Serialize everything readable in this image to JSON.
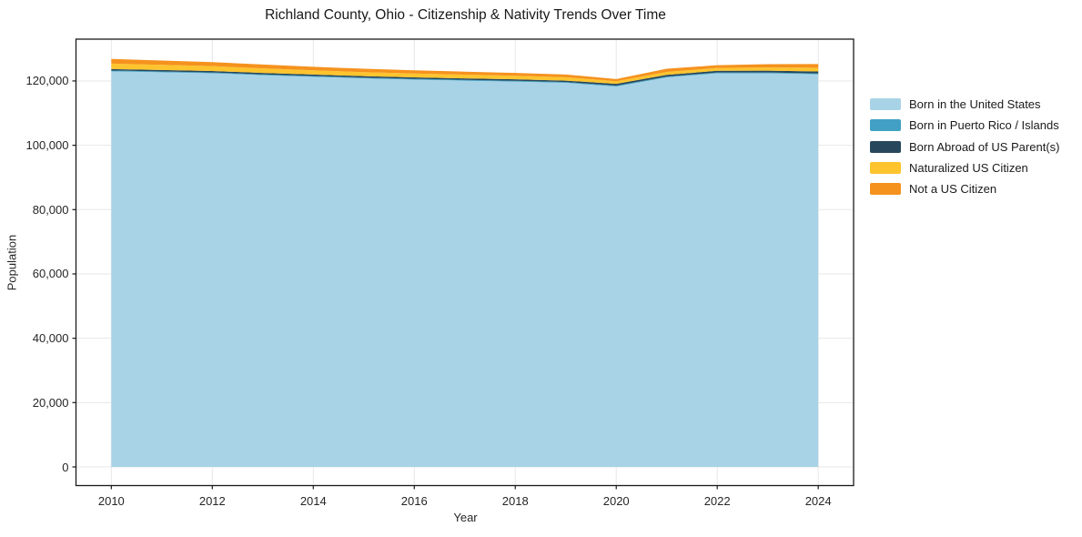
{
  "chart": {
    "title": "Richland County, Ohio - Citizenship & Nativity Trends Over Time",
    "xlabel": "Year",
    "ylabel": "Population"
  },
  "chart_data": {
    "type": "area",
    "stacked": true,
    "title": "Richland County, Ohio - Citizenship & Nativity Trends Over Time",
    "xlabel": "Year",
    "ylabel": "Population",
    "grid": true,
    "legend_position": "right-outside",
    "x": [
      2010,
      2011,
      2012,
      2013,
      2014,
      2015,
      2016,
      2017,
      2018,
      2019,
      2020,
      2021,
      2022,
      2023,
      2024
    ],
    "series": [
      {
        "name": "Born in the United States",
        "color": "#A8D3E7",
        "values": [
          123000,
          122700,
          122400,
          121800,
          121300,
          120800,
          120400,
          120100,
          119800,
          119400,
          118300,
          121100,
          122400,
          122400,
          122100
        ]
      },
      {
        "name": "Born in Puerto Rico / Islands",
        "color": "#41A0C4",
        "values": [
          250,
          250,
          250,
          250,
          250,
          250,
          250,
          250,
          250,
          250,
          250,
          250,
          250,
          250,
          250
        ]
      },
      {
        "name": "Born Abroad of US Parent(s)",
        "color": "#27485C",
        "values": [
          450,
          450,
          450,
          450,
          450,
          450,
          450,
          450,
          450,
          450,
          550,
          550,
          500,
          550,
          600
        ]
      },
      {
        "name": "Naturalized US Citizen",
        "color": "#FDC42E",
        "values": [
          1700,
          1600,
          1500,
          1400,
          1300,
          1250,
          1200,
          1150,
          1100,
          1050,
          800,
          900,
          900,
          1000,
          1150
        ]
      },
      {
        "name": "Not a US Citizen",
        "color": "#F5921E",
        "values": [
          1450,
          1350,
          1250,
          1200,
          1100,
          1050,
          1000,
          950,
          900,
          850,
          700,
          1000,
          850,
          1000,
          1150
        ]
      }
    ],
    "xlim": [
      2009.3,
      2024.7
    ],
    "ylim": [
      -5800,
      133000
    ],
    "x_ticks": [
      {
        "v": 2010,
        "label": "2010"
      },
      {
        "v": 2012,
        "label": "2012"
      },
      {
        "v": 2014,
        "label": "2014"
      },
      {
        "v": 2016,
        "label": "2016"
      },
      {
        "v": 2018,
        "label": "2018"
      },
      {
        "v": 2020,
        "label": "2020"
      },
      {
        "v": 2022,
        "label": "2022"
      },
      {
        "v": 2024,
        "label": "2024"
      }
    ],
    "y_ticks": [
      {
        "v": 0,
        "label": "0"
      },
      {
        "v": 20000,
        "label": "20,000"
      },
      {
        "v": 40000,
        "label": "40,000"
      },
      {
        "v": 60000,
        "label": "60,000"
      },
      {
        "v": 80000,
        "label": "80,000"
      },
      {
        "v": 100000,
        "label": "100,000"
      },
      {
        "v": 120000,
        "label": "120,000"
      }
    ]
  },
  "style": {
    "grid_color": "#e7e7e7",
    "axis_color": "#1a1a1a",
    "tick_text_color": "#262626",
    "background": "#ffffff"
  }
}
